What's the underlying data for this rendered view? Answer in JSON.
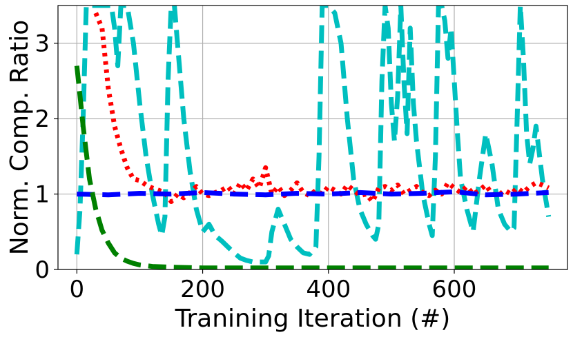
{
  "chart_data": {
    "type": "line",
    "xlabel": "Tranining Iteration (#)",
    "ylabel": "Norm. Comp. Ratio",
    "xlim": [
      -30,
      780
    ],
    "ylim": [
      0,
      3.5
    ],
    "xticks": [
      0,
      200,
      400,
      600
    ],
    "yticks": [
      0,
      1,
      2,
      3
    ],
    "grid": true,
    "colors": {
      "blue": "#0000ff",
      "red": "#ff0000",
      "green": "#008000",
      "cyan": "#00bfbf"
    },
    "series": [
      {
        "color": "#00bfbf",
        "style": "dashed",
        "x": [
          0,
          5,
          10,
          15,
          20,
          25,
          30,
          40,
          50,
          55,
          60,
          65,
          70,
          75,
          80,
          90,
          100,
          110,
          120,
          125,
          130,
          135,
          140,
          145,
          150,
          155,
          160,
          170,
          180,
          190,
          200,
          210,
          220,
          230,
          240,
          250,
          260,
          270,
          280,
          290,
          300,
          305,
          310,
          320,
          330,
          340,
          350,
          360,
          370,
          380,
          385,
          390,
          400,
          410,
          420,
          430,
          440,
          450,
          460,
          470,
          475,
          480,
          485,
          490,
          495,
          500,
          505,
          510,
          515,
          520,
          525,
          530,
          535,
          540,
          550,
          560,
          565,
          570,
          575,
          580,
          585,
          590,
          595,
          600,
          605,
          610,
          620,
          630,
          640,
          650,
          660,
          670,
          680,
          690,
          695,
          700,
          705,
          710,
          715,
          720,
          725,
          730,
          740,
          750
        ],
        "y": [
          0.2,
          0.8,
          2.0,
          3.5,
          3.5,
          3.5,
          3.5,
          3.5,
          3.5,
          3.5,
          3.2,
          2.7,
          3.5,
          3.5,
          3.5,
          3.0,
          2.2,
          1.5,
          1.0,
          0.8,
          0.6,
          0.45,
          0.7,
          2.5,
          3.5,
          3.5,
          3.0,
          2.0,
          1.3,
          0.8,
          0.5,
          0.6,
          0.45,
          0.38,
          0.3,
          0.22,
          0.15,
          0.12,
          0.1,
          0.1,
          0.1,
          0.18,
          0.5,
          0.8,
          0.6,
          0.4,
          0.3,
          0.22,
          0.2,
          0.3,
          1.5,
          3.5,
          3.5,
          3.4,
          3.0,
          2.0,
          1.2,
          0.8,
          0.6,
          0.45,
          0.4,
          0.6,
          2.5,
          3.5,
          3.2,
          2.2,
          1.7,
          2.3,
          3.5,
          2.5,
          1.8,
          3.2,
          2.2,
          1.7,
          1.0,
          0.6,
          0.45,
          1.5,
          3.5,
          3.5,
          3.3,
          2.8,
          3.2,
          2.5,
          1.8,
          1.2,
          0.8,
          0.5,
          1.2,
          1.8,
          1.4,
          0.8,
          0.6,
          0.5,
          0.55,
          2.0,
          3.5,
          2.8,
          1.8,
          1.4,
          1.6,
          1.9,
          1.2,
          0.7
        ]
      },
      {
        "color": "#ff0000",
        "style": "dotted",
        "x": [
          30,
          40,
          50,
          60,
          70,
          80,
          90,
          100,
          110,
          120,
          130,
          140,
          150,
          160,
          170,
          180,
          190,
          200,
          210,
          220,
          230,
          240,
          250,
          260,
          270,
          280,
          290,
          300,
          310,
          320,
          330,
          340,
          350,
          360,
          370,
          380,
          390,
          400,
          410,
          420,
          430,
          440,
          450,
          460,
          470,
          480,
          490,
          500,
          510,
          520,
          530,
          540,
          550,
          560,
          570,
          580,
          590,
          600,
          610,
          620,
          630,
          640,
          650,
          660,
          670,
          680,
          690,
          700,
          710,
          720,
          730,
          740,
          750
        ],
        "y": [
          3.4,
          3.2,
          2.4,
          1.9,
          1.6,
          1.35,
          1.2,
          1.18,
          1.12,
          1.08,
          1.05,
          1.02,
          0.9,
          1.0,
          0.95,
          1.02,
          1.1,
          1.0,
          0.98,
          1.02,
          1.05,
          1.1,
          1.0,
          1.15,
          1.05,
          1.2,
          1.08,
          1.35,
          1.0,
          1.1,
          0.98,
          1.05,
          1.15,
          1.02,
          0.98,
          1.05,
          1.0,
          1.1,
          1.05,
          1.0,
          1.12,
          1.05,
          0.98,
          1.0,
          0.9,
          1.08,
          1.1,
          1.05,
          1.12,
          1.0,
          1.05,
          1.1,
          1.02,
          0.98,
          1.05,
          1.0,
          1.15,
          1.08,
          1.02,
          1.1,
          1.0,
          1.05,
          1.12,
          1.0,
          0.98,
          1.05,
          1.0,
          1.08,
          1.02,
          1.1,
          1.15,
          1.12,
          1.08
        ]
      },
      {
        "color": "#0000ff",
        "style": "dashed",
        "x": [
          0,
          50,
          100,
          150,
          200,
          250,
          300,
          350,
          400,
          450,
          500,
          550,
          600,
          650,
          700,
          750
        ],
        "y": [
          1.0,
          0.99,
          1.01,
          1.0,
          1.02,
          1.0,
          0.99,
          1.01,
          1.0,
          1.02,
          1.0,
          1.01,
          1.03,
          0.99,
          1.0,
          1.02
        ]
      },
      {
        "color": "#008000",
        "style": "dashed",
        "x": [
          0,
          5,
          10,
          20,
          30,
          40,
          50,
          60,
          70,
          80,
          90,
          100,
          120,
          150,
          200,
          250,
          300,
          400,
          500,
          600,
          700,
          750
        ],
        "y": [
          2.7,
          2.3,
          1.9,
          1.2,
          0.8,
          0.52,
          0.35,
          0.22,
          0.15,
          0.11,
          0.08,
          0.06,
          0.04,
          0.03,
          0.02,
          0.02,
          0.02,
          0.02,
          0.02,
          0.02,
          0.02,
          0.02
        ]
      }
    ]
  }
}
